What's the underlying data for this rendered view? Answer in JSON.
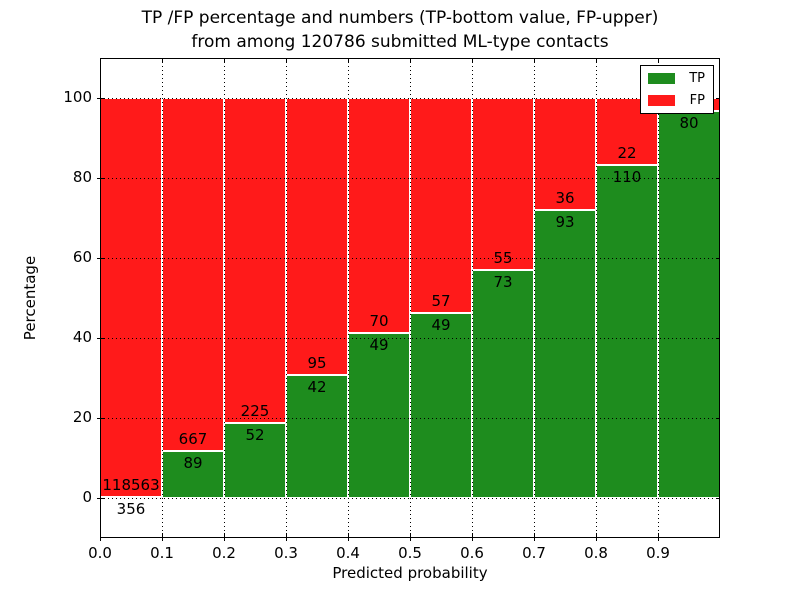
{
  "chart_data": {
    "type": "stacked_bar",
    "title_line1": "TP /FP percentage and numbers (TP-bottom value, FP-upper)",
    "title_line2": "from among 120786 submitted ML-type contacts",
    "xlabel": "Predicted probability",
    "ylabel": "Percentage",
    "xlim": [
      0.0,
      1.0
    ],
    "ylim": [
      -10,
      110
    ],
    "grid": "dotted",
    "x_ticks": [
      {
        "value": 0.0,
        "label": "0.0"
      },
      {
        "value": 0.1,
        "label": "0.1"
      },
      {
        "value": 0.2,
        "label": "0.2"
      },
      {
        "value": 0.3,
        "label": "0.3"
      },
      {
        "value": 0.4,
        "label": "0.4"
      },
      {
        "value": 0.5,
        "label": "0.5"
      },
      {
        "value": 0.6,
        "label": "0.6"
      },
      {
        "value": 0.7,
        "label": "0.7"
      },
      {
        "value": 0.8,
        "label": "0.8"
      },
      {
        "value": 0.9,
        "label": "0.9"
      }
    ],
    "y_ticks": [
      {
        "value": 0,
        "label": "0"
      },
      {
        "value": 20,
        "label": "20"
      },
      {
        "value": 40,
        "label": "40"
      },
      {
        "value": 60,
        "label": "60"
      },
      {
        "value": 80,
        "label": "80"
      },
      {
        "value": 100,
        "label": "100"
      }
    ],
    "colors": {
      "tp": "#1e8c1e",
      "fp": "#ff1a1a",
      "edge": "#ffffff"
    },
    "legend": {
      "position": "upper right",
      "entries": [
        {
          "label": "TP",
          "color": "#1e8c1e"
        },
        {
          "label": "FP",
          "color": "#ff1a1a"
        }
      ]
    },
    "bars": [
      {
        "x_start": 0.0,
        "x_end": 0.1,
        "tp_pct": 0.3,
        "tp_label": "356",
        "fp_label": "118563"
      },
      {
        "x_start": 0.1,
        "x_end": 0.2,
        "tp_pct": 11.8,
        "tp_label": "89",
        "fp_label": "667"
      },
      {
        "x_start": 0.2,
        "x_end": 0.3,
        "tp_pct": 18.8,
        "tp_label": "52",
        "fp_label": "225"
      },
      {
        "x_start": 0.3,
        "x_end": 0.4,
        "tp_pct": 30.7,
        "tp_label": "42",
        "fp_label": "95"
      },
      {
        "x_start": 0.4,
        "x_end": 0.5,
        "tp_pct": 41.2,
        "tp_label": "49",
        "fp_label": "70"
      },
      {
        "x_start": 0.5,
        "x_end": 0.6,
        "tp_pct": 46.2,
        "tp_label": "49",
        "fp_label": "57"
      },
      {
        "x_start": 0.6,
        "x_end": 0.7,
        "tp_pct": 57.0,
        "tp_label": "73",
        "fp_label": "55"
      },
      {
        "x_start": 0.7,
        "x_end": 0.8,
        "tp_pct": 72.1,
        "tp_label": "93",
        "fp_label": "36"
      },
      {
        "x_start": 0.8,
        "x_end": 0.9,
        "tp_pct": 83.3,
        "tp_label": "110",
        "fp_label": "22"
      },
      {
        "x_start": 0.9,
        "x_end": 1.0,
        "tp_pct": 96.7,
        "tp_label": "80",
        "fp_label": null
      }
    ]
  }
}
